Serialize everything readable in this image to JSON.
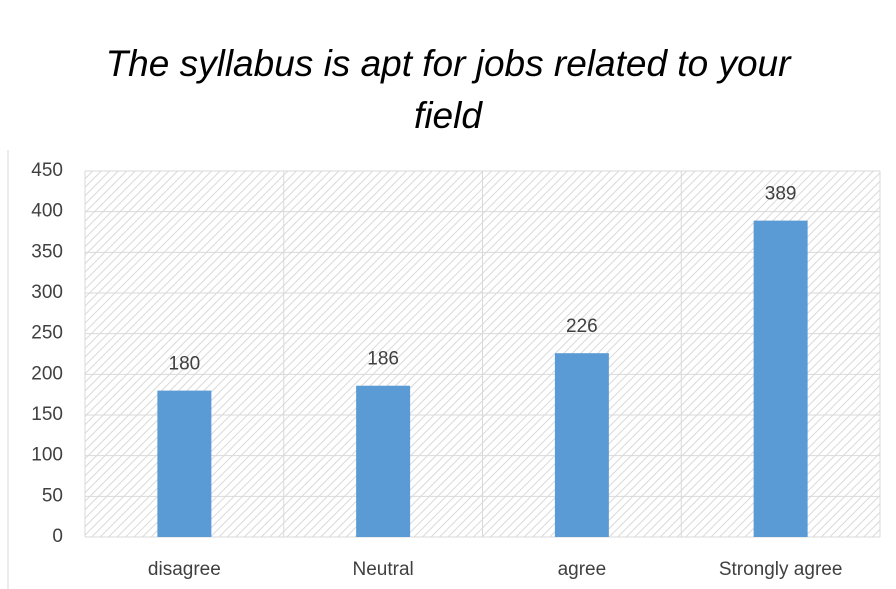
{
  "chart_data": {
    "type": "bar",
    "title": "The syllabus is apt for jobs related to your field",
    "categories": [
      "disagree",
      "Neutral",
      "agree",
      "Strongly agree"
    ],
    "values": [
      180,
      186,
      226,
      389
    ],
    "color": "#5b9bd5",
    "ylim": [
      0,
      450
    ],
    "yticks": [
      0,
      50,
      100,
      150,
      200,
      250,
      300,
      350,
      400,
      450
    ],
    "grid": true
  }
}
